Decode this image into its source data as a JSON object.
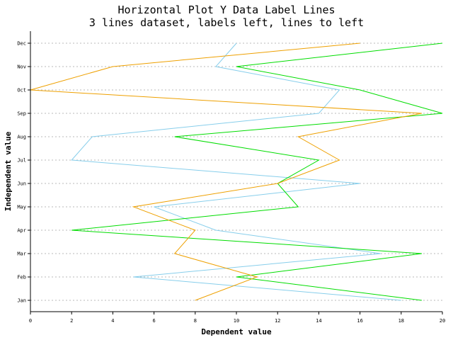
{
  "chart_data": {
    "type": "line",
    "orientation": "horizontal",
    "title": "Horizontal Plot Y Data Label Lines",
    "subtitle": "3 lines dataset, labels left, lines to left",
    "xlabel": "Dependent value",
    "ylabel": "Independent value",
    "xlim": [
      0,
      20
    ],
    "x_ticks": [
      "0",
      "2",
      "4",
      "6",
      "8",
      "10",
      "12",
      "14",
      "16",
      "18",
      "20"
    ],
    "categories": [
      "Jan",
      "Feb",
      "Mar",
      "Apr",
      "May",
      "Jun",
      "Jul",
      "Aug",
      "Sep",
      "Oct",
      "Nov",
      "Dec"
    ],
    "grid": true,
    "series": [
      {
        "color": "#87ceeb",
        "values": [
          18,
          5,
          17,
          9,
          6,
          16,
          2,
          3,
          14,
          15,
          9,
          10
        ]
      },
      {
        "color": "#00dd00",
        "values": [
          19,
          10,
          19,
          2,
          13,
          12,
          14,
          7,
          20,
          16,
          10,
          20
        ]
      },
      {
        "color": "#eea000",
        "values": [
          8,
          11,
          7,
          8,
          5,
          12,
          15,
          13,
          19,
          0,
          4,
          16
        ]
      }
    ]
  }
}
